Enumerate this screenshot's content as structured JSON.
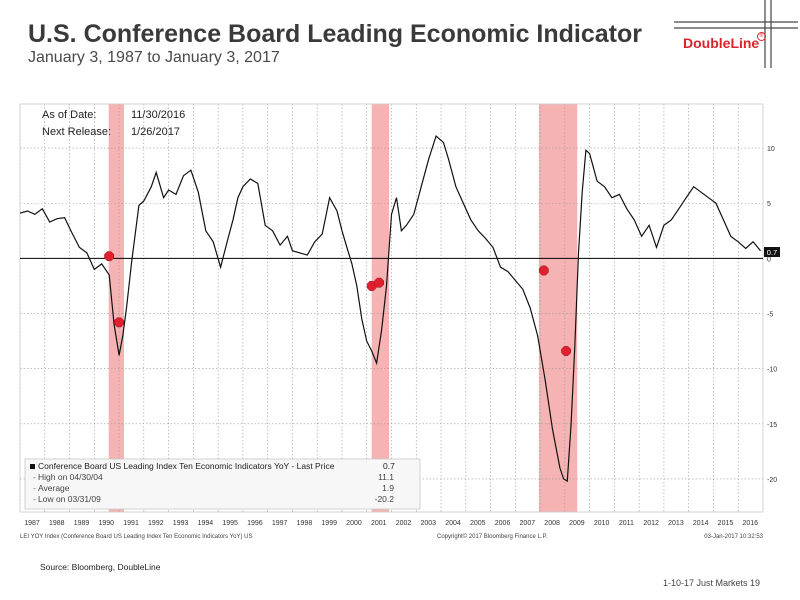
{
  "header": {
    "title": "U.S. Conference Board Leading Economic Indicator",
    "subtitle": "January 3, 1987 to January 3, 2017"
  },
  "brand": {
    "name": "DoubleLine",
    "accent": "#d9232d",
    "trademark": "®"
  },
  "chart_meta": {
    "as_of_label": "As of Date:",
    "as_of_value": "11/30/2016",
    "next_release_label": "Next Release:",
    "next_release_value": "1/26/2017",
    "last_price_tag": "0.7",
    "legend": {
      "series_label": "Conference Board US Leading Index Ten Economic Indicators YoY - Last Price",
      "series_value": "0.7",
      "rows": [
        {
          "label": "High on 04/30/04",
          "value": "11.1"
        },
        {
          "label": "Average",
          "value": "1.9"
        },
        {
          "label": "Low on 03/31/09",
          "value": "-20.2"
        }
      ]
    },
    "footer_left": "LEI YOY Index (Conference Board US Leading Index Ten Economic Indicators YoY) US",
    "footer_center": "Copyright© 2017 Bloomberg Finance L.P.",
    "footer_right": "03-Jan-2017 10:32:53"
  },
  "source_note": "Source: Bloomberg, DoubleLine",
  "page_footer": "1-10-17 Just Markets   19",
  "colors": {
    "series": "#111111",
    "recession": "#f4a6a6",
    "marker": "#e0202e",
    "grid": "#999999",
    "zero_line": "#000000"
  },
  "chart_data": {
    "type": "line",
    "title": "",
    "xlabel": "",
    "ylabel": "",
    "xlim": [
      1987.0,
      2017.0
    ],
    "ylim": [
      -23.0,
      14.0
    ],
    "x_ticks": [
      1987,
      1988,
      1989,
      1990,
      1991,
      1992,
      1993,
      1994,
      1995,
      1996,
      1997,
      1998,
      1999,
      2000,
      2001,
      2002,
      2003,
      2004,
      2005,
      2006,
      2007,
      2008,
      2009,
      2010,
      2011,
      2012,
      2013,
      2014,
      2015,
      2016
    ],
    "y_ticks": [
      10,
      5,
      0,
      -5,
      -10,
      -15,
      -20
    ],
    "grid": true,
    "legend_position": "bottom-left",
    "reference_line": 0,
    "recessions": [
      {
        "start": 1990.58,
        "end": 1991.2
      },
      {
        "start": 2001.2,
        "end": 2001.9
      },
      {
        "start": 2007.95,
        "end": 2009.5
      }
    ],
    "markers": [
      {
        "x": 1990.6,
        "y": 0.2
      },
      {
        "x": 1991.0,
        "y": -5.8
      },
      {
        "x": 2001.2,
        "y": -2.5
      },
      {
        "x": 2001.5,
        "y": -2.2
      },
      {
        "x": 2008.15,
        "y": -1.1
      },
      {
        "x": 2009.05,
        "y": -8.4
      }
    ],
    "series": [
      {
        "name": "Conference Board US Leading Index Ten Economic Indicators YoY",
        "x": [
          1987.0,
          1987.3,
          1987.6,
          1987.9,
          1988.2,
          1988.5,
          1988.8,
          1989.1,
          1989.4,
          1989.7,
          1990.0,
          1990.3,
          1990.6,
          1990.8,
          1991.0,
          1991.15,
          1991.3,
          1991.5,
          1991.8,
          1992.0,
          1992.3,
          1992.5,
          1992.8,
          1993.0,
          1993.3,
          1993.6,
          1993.9,
          1994.2,
          1994.5,
          1994.8,
          1995.1,
          1995.4,
          1995.6,
          1995.8,
          1996.0,
          1996.3,
          1996.6,
          1996.9,
          1997.2,
          1997.5,
          1997.8,
          1998.0,
          1998.3,
          1998.6,
          1998.9,
          1999.2,
          1999.5,
          1999.8,
          2000.0,
          2000.2,
          2000.4,
          2000.6,
          2000.8,
          2001.0,
          2001.2,
          2001.4,
          2001.6,
          2001.8,
          2002.0,
          2002.2,
          2002.4,
          2002.6,
          2002.9,
          2003.2,
          2003.5,
          2003.8,
          2004.1,
          2004.3,
          2004.6,
          2004.9,
          2005.2,
          2005.5,
          2005.8,
          2006.1,
          2006.4,
          2006.7,
          2007.0,
          2007.3,
          2007.6,
          2007.9,
          2008.2,
          2008.5,
          2008.8,
          2008.95,
          2009.1,
          2009.25,
          2009.4,
          2009.55,
          2009.7,
          2009.85,
          2010.0,
          2010.3,
          2010.6,
          2010.9,
          2011.2,
          2011.5,
          2011.8,
          2012.1,
          2012.4,
          2012.7,
          2013.0,
          2013.3,
          2013.6,
          2013.9,
          2014.2,
          2014.5,
          2014.8,
          2015.1,
          2015.4,
          2015.7,
          2016.0,
          2016.3,
          2016.6,
          2016.9
        ],
        "y": [
          4.1,
          4.3,
          4.0,
          4.5,
          3.3,
          3.6,
          3.7,
          2.3,
          1.0,
          0.5,
          -1.0,
          -0.5,
          -1.5,
          -6.0,
          -8.8,
          -7.0,
          -4.5,
          -0.5,
          4.8,
          5.2,
          6.5,
          7.8,
          5.5,
          6.2,
          5.8,
          7.5,
          8.0,
          6.0,
          2.5,
          1.5,
          -0.8,
          1.8,
          3.5,
          5.5,
          6.5,
          7.2,
          6.8,
          3.0,
          2.5,
          1.2,
          2.0,
          0.7,
          0.5,
          0.3,
          1.5,
          2.2,
          5.5,
          4.3,
          2.5,
          1.0,
          -0.5,
          -2.5,
          -5.5,
          -7.5,
          -8.4,
          -9.5,
          -6.5,
          -2.5,
          4.0,
          5.5,
          2.5,
          3.0,
          4.0,
          6.5,
          9.0,
          11.1,
          10.5,
          9.0,
          6.5,
          5.0,
          3.5,
          2.5,
          1.8,
          1.0,
          -0.8,
          -1.2,
          -2.0,
          -2.8,
          -4.5,
          -7.0,
          -11.0,
          -15.5,
          -19.0,
          -20.0,
          -20.2,
          -15.0,
          -8.0,
          0.5,
          6.0,
          9.8,
          9.5,
          7.0,
          6.5,
          5.5,
          5.8,
          4.5,
          3.5,
          2.0,
          3.0,
          1.0,
          3.0,
          3.5,
          4.5,
          5.5,
          6.5,
          6.0,
          5.5,
          5.0,
          3.5,
          2.0,
          1.5,
          0.9,
          1.5,
          0.7
        ]
      }
    ]
  }
}
